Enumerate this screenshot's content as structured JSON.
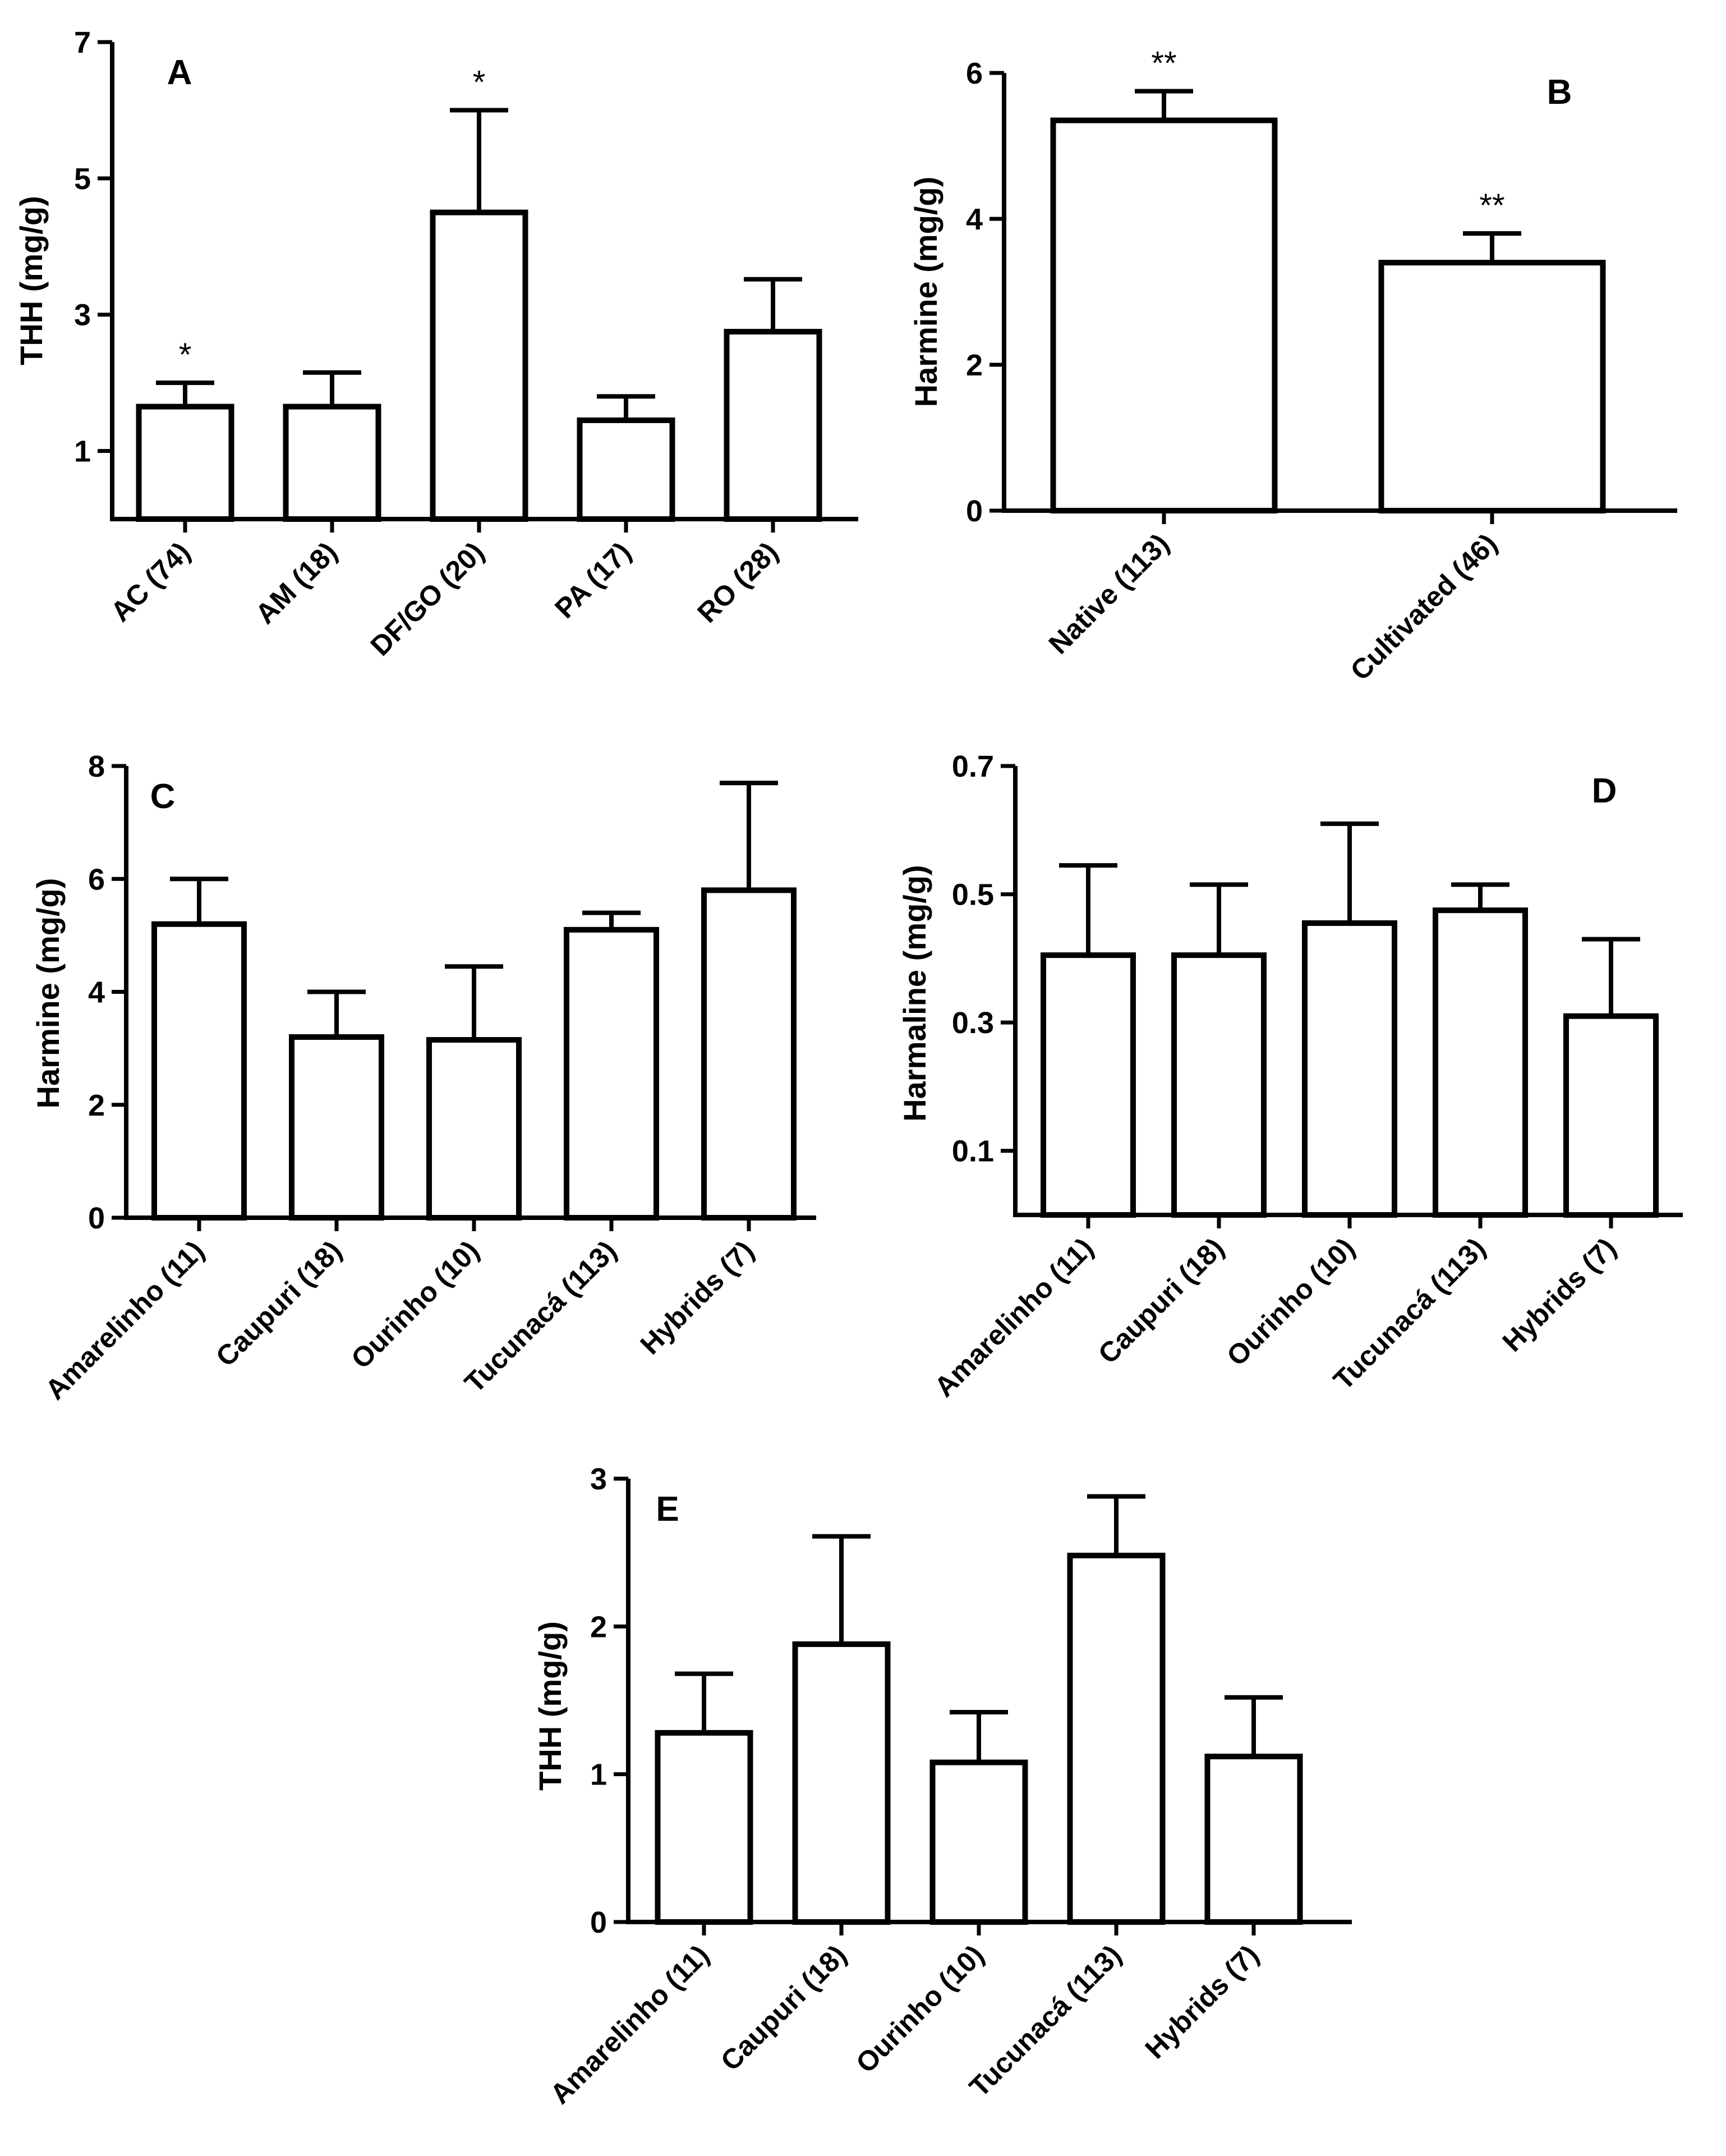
{
  "chart_data": [
    {
      "panel": "A",
      "type": "bar",
      "ylabel": "THH (mg/g)",
      "ylim": [
        0,
        7
      ],
      "yticks": [
        1,
        3,
        5,
        7
      ],
      "categories": [
        "AC (74)",
        "AM (18)",
        "DF/GO (20)",
        "PA (17)",
        "RO (28)"
      ],
      "values": [
        1.65,
        1.65,
        4.5,
        1.45,
        2.75
      ],
      "errors": [
        0.35,
        0.5,
        1.5,
        0.35,
        0.77
      ],
      "annotations": [
        "*",
        "",
        "*",
        "",
        ""
      ]
    },
    {
      "panel": "B",
      "type": "bar",
      "ylabel": "Harmine (mg/g)",
      "ylim": [
        0,
        6
      ],
      "yticks": [
        0,
        2,
        4,
        6
      ],
      "categories": [
        "Native (113)",
        "Cultivated (46)"
      ],
      "values": [
        5.35,
        3.4
      ],
      "errors": [
        0.4,
        0.4
      ],
      "annotations": [
        "**",
        "**"
      ]
    },
    {
      "panel": "C",
      "type": "bar",
      "ylabel": "Harmine (mg/g)",
      "ylim": [
        0,
        8
      ],
      "yticks": [
        0,
        2,
        4,
        6,
        8
      ],
      "categories": [
        "Amarelinho (11)",
        "Caupuri (18)",
        "Ourinho (10)",
        "Tucunacá (113)",
        "Hybrids (7)"
      ],
      "values": [
        5.2,
        3.2,
        3.15,
        5.1,
        5.8
      ],
      "errors": [
        0.8,
        0.8,
        1.3,
        0.3,
        1.9
      ],
      "annotations": [
        "",
        "",
        "",
        "",
        ""
      ]
    },
    {
      "panel": "D",
      "type": "bar",
      "ylabel": "Harmaline (mg/g)",
      "ylim": [
        0,
        0.7
      ],
      "yticks": [
        0.1,
        0.3,
        0.5,
        0.7
      ],
      "categories": [
        "Amarelinho (11)",
        "Caupuri (18)",
        "Ourinho (10)",
        "Tucunacá (113)",
        "Hybrids (7)"
      ],
      "values": [
        0.405,
        0.405,
        0.455,
        0.475,
        0.31
      ],
      "errors": [
        0.14,
        0.11,
        0.155,
        0.04,
        0.12
      ],
      "annotations": [
        "",
        "",
        "",
        "",
        ""
      ]
    },
    {
      "panel": "E",
      "type": "bar",
      "ylabel": "THH (mg/g)",
      "ylim": [
        0,
        3
      ],
      "yticks": [
        0,
        1,
        2,
        3
      ],
      "categories": [
        "Amarelinho (11)",
        "Caupuri (18)",
        "Ourinho (10)",
        "Tucunacá (113)",
        "Hybrids (7)"
      ],
      "values": [
        1.28,
        1.88,
        1.08,
        2.48,
        1.12
      ],
      "errors": [
        0.4,
        0.73,
        0.34,
        0.4,
        0.4
      ],
      "annotations": [
        "",
        "",
        "",
        "",
        ""
      ]
    }
  ]
}
